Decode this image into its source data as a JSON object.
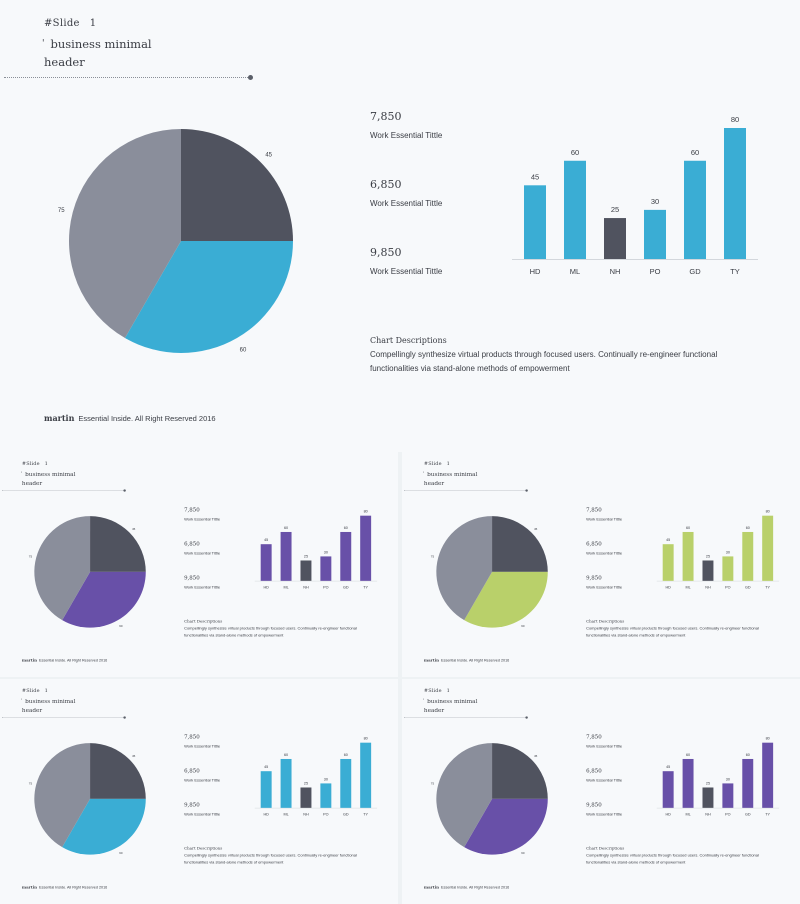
{
  "slide": {
    "number_prefix": "#Slide",
    "number": "1",
    "tick": "'",
    "title_line1": "business minimal",
    "title_line2": "header",
    "stats": [
      {
        "value": "7,850",
        "label": "Work Essential Tittle"
      },
      {
        "value": "6,850",
        "label": "Work Essential Tittle"
      },
      {
        "value": "9,850",
        "label": "Work Essential Tittle"
      }
    ],
    "description_title": "Chart Descriptions",
    "description_body": "Compellingly synthesize virtual products through focused users. Continually re-engineer functional functionalities via stand-alone methods of empowerment",
    "footer_brand": "martin",
    "footer_text": "Essential Inside. All Right Reserved 2016"
  },
  "colors": {
    "dark_slice": "#50535f",
    "gray_slice": "#8a8e9b",
    "variants": [
      {
        "accent": "#3aadd4",
        "bar_accent": "#3aadd4"
      },
      {
        "accent": "#6850a8",
        "bar_accent": "#6850a8"
      },
      {
        "accent": "#b9d06a",
        "bar_accent": "#b9d06a"
      },
      {
        "accent": "#3aadd4",
        "bar_accent": "#3aadd4"
      },
      {
        "accent": "#6850a8",
        "bar_accent": "#6850a8"
      }
    ]
  },
  "chart_data": [
    {
      "type": "pie",
      "values": [
        45,
        60,
        75
      ],
      "labels": [
        "45",
        "60",
        "75"
      ]
    },
    {
      "type": "bar",
      "categories": [
        "HD",
        "ML",
        "NH",
        "PO",
        "GD",
        "TY"
      ],
      "values": [
        45,
        60,
        25,
        30,
        60,
        80
      ],
      "highlight_index": 2,
      "ylim": [
        0,
        80
      ]
    }
  ]
}
